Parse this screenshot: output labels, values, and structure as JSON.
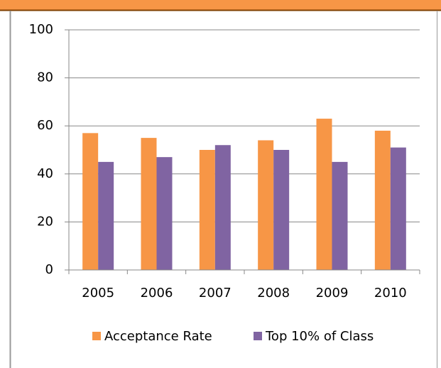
{
  "chart_data": {
    "type": "bar",
    "categories": [
      "2005",
      "2006",
      "2007",
      "2008",
      "2009",
      "2010"
    ],
    "series": [
      {
        "name": "Acceptance Rate",
        "color": "#f79646",
        "values": [
          57,
          55,
          50,
          54,
          63,
          58
        ]
      },
      {
        "name": "Top 10% of Class",
        "color": "#8064a2",
        "values": [
          45,
          47,
          52,
          50,
          45,
          51
        ]
      }
    ],
    "ylim": [
      0,
      100
    ],
    "yticks": [
      0,
      20,
      40,
      60,
      80,
      100
    ],
    "grid": true,
    "legend": "bottom"
  }
}
